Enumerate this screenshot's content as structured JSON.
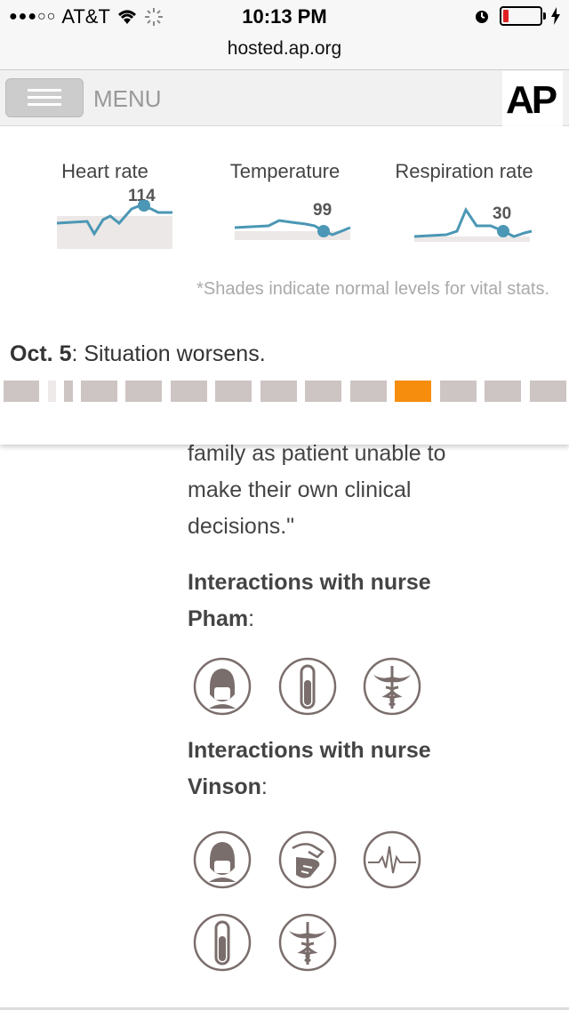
{
  "status": {
    "signal_dots": "●●●○○",
    "carrier": "AT&T",
    "time": "10:13 PM"
  },
  "browser": {
    "url": "hosted.ap.org"
  },
  "nav": {
    "menu_label": "MENU",
    "logo_text": "AP"
  },
  "vitals": [
    {
      "title": "Heart rate",
      "value": "114"
    },
    {
      "title": "Temperature",
      "value": "99"
    },
    {
      "title": "Respiration rate",
      "value": "30"
    }
  ],
  "note": "*Shades indicate normal levels for vital stats.",
  "timeline": {
    "date": "Oct. 5",
    "caption": ": Situation worsens.",
    "active_index": 8,
    "segment_count": 13
  },
  "article": {
    "partial_line": "family as patient unable to",
    "line2": "make their own clinical",
    "line3": "decisions.\"",
    "section1_title_line1": "Interactions with nurse",
    "section1_title_line2": "Pham",
    "section1_colon": ":",
    "section1_icons": [
      "mask-icon",
      "test-tube-icon",
      "caduceus-icon"
    ],
    "section2_title_line1": "Interactions with nurse",
    "section2_title_line2": "Vinson",
    "section2_colon": ":",
    "section2_icons": [
      "mask-icon",
      "hand-care-icon",
      "heartbeat-icon",
      "test-tube-icon",
      "caduceus-icon"
    ]
  }
}
